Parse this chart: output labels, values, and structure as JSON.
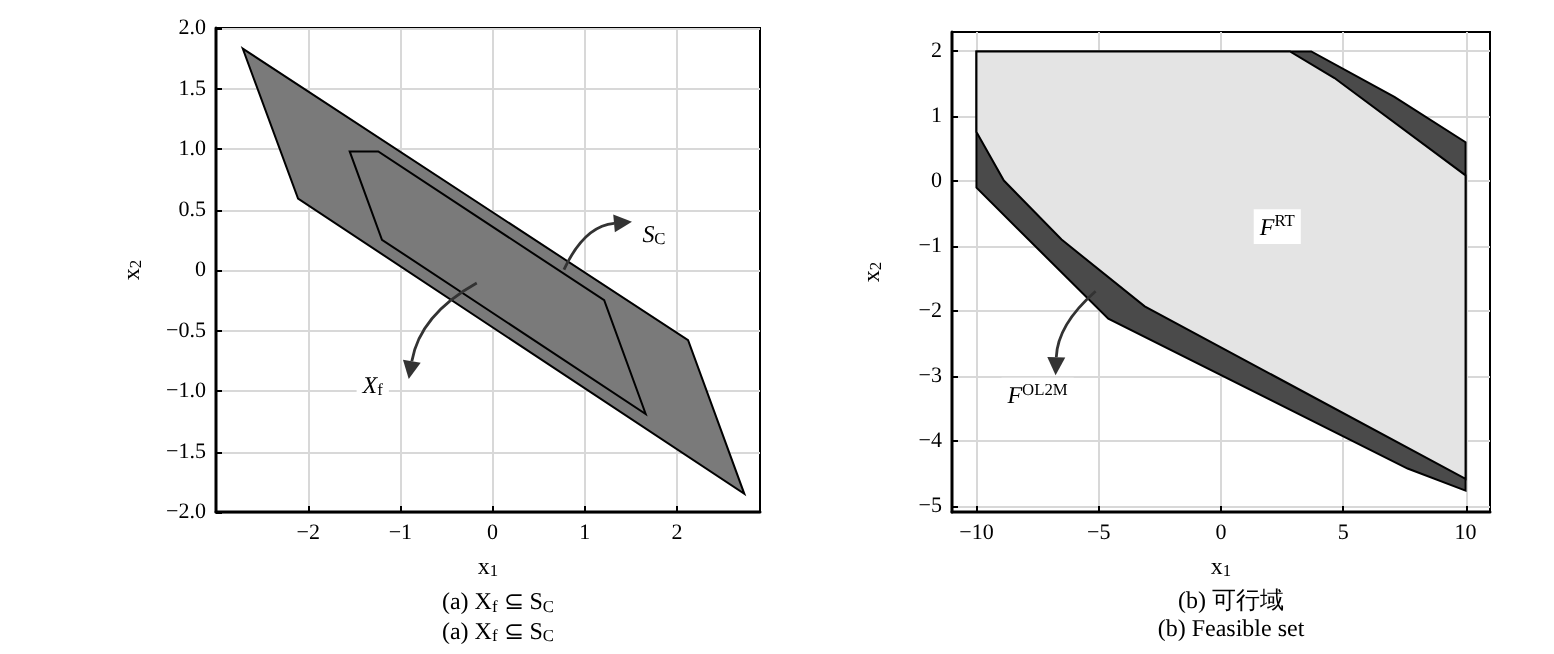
{
  "chart_data": [
    {
      "type": "area",
      "title": "(a) X$_{f}$ ⊆ S$_{C}$",
      "subtitle": "(a) X$_{f}$ ⊆ S$_{C}$",
      "xlabel": "x$_{1}$",
      "ylabel": "x$_{2}$",
      "xlim": [
        -3,
        2.9
      ],
      "ylim": [
        -2,
        2
      ],
      "xticks": [
        {
          "value": -2,
          "label": "−2"
        },
        {
          "value": -1,
          "label": "−1"
        },
        0,
        1,
        2
      ],
      "yticks": [
        {
          "value": -2,
          "label": "−2.0"
        },
        {
          "value": -1.5,
          "label": "−1.5"
        },
        {
          "value": -1,
          "label": "−1.0"
        },
        {
          "value": -0.5,
          "label": "−0.5"
        },
        0,
        0.5,
        {
          "value": 1,
          "label": "1.0"
        },
        1.5,
        {
          "value": 2,
          "label": "2.0"
        }
      ],
      "grid": true,
      "series": [
        {
          "color": "#7a7a7a",
          "x": [
            -2.71,
            2.12,
            2.73,
            -2.11
          ],
          "values": [
            1.83,
            -0.58,
            -1.85,
            0.59
          ]
        },
        {
          "color": "#7a7a7a",
          "x": [
            -1.55,
            -1.24,
            1.21,
            1.66,
            -1.2
          ],
          "values": [
            0.98,
            0.98,
            -0.25,
            -1.19,
            0.25
          ]
        }
      ],
      "annotations": [
        {
          "text": "S$_{C}$",
          "x": 1.75,
          "y": 0.3
        },
        {
          "text": "X$_{f}$",
          "x": -1.3,
          "y": -0.95
        }
      ]
    },
    {
      "type": "area",
      "title": "(b) 可行域",
      "subtitle": "(b) Feasible set",
      "xlabel": "x$_{1}$",
      "ylabel": "x$_{2}$",
      "xlim": [
        -11,
        11
      ],
      "ylim": [
        -5.1,
        2.3
      ],
      "xticks": [
        {
          "value": -10,
          "label": "−10"
        },
        {
          "value": -5,
          "label": "−5"
        },
        0,
        5,
        10
      ],
      "yticks": [
        {
          "value": -5,
          "label": "−5"
        },
        {
          "value": -4,
          "label": "−4"
        },
        {
          "value": -3,
          "label": "−3"
        },
        {
          "value": -2,
          "label": "−2"
        },
        {
          "value": -1,
          "label": "−1"
        },
        0,
        1,
        2
      ],
      "grid": true,
      "series": [
        {
          "color": "#4a4a4a",
          "x": [
            -10,
            3.69,
            7.09,
            10,
            10,
            7.63,
            -4.61,
            -7.47,
            -10
          ],
          "values": [
            2,
            2,
            1.3,
            0.6,
            -4.77,
            -4.43,
            -2.12,
            -1.05,
            -0.1
          ]
        },
        {
          "color": "#e4e4e4",
          "x": [
            -10,
            2.82,
            4.64,
            10,
            10,
            -3.12,
            -6.52,
            -8.88,
            -10
          ],
          "values": [
            2,
            2,
            1.59,
            0.09,
            -4.59,
            -1.93,
            -0.9,
            0.01,
            0.76
          ]
        }
      ],
      "annotations": [
        {
          "text": "F$^{RT}$",
          "x": 2.3,
          "y": -0.7
        },
        {
          "text": "F$^{OL2M}$",
          "x": -7.5,
          "y": -3.3
        }
      ]
    }
  ]
}
